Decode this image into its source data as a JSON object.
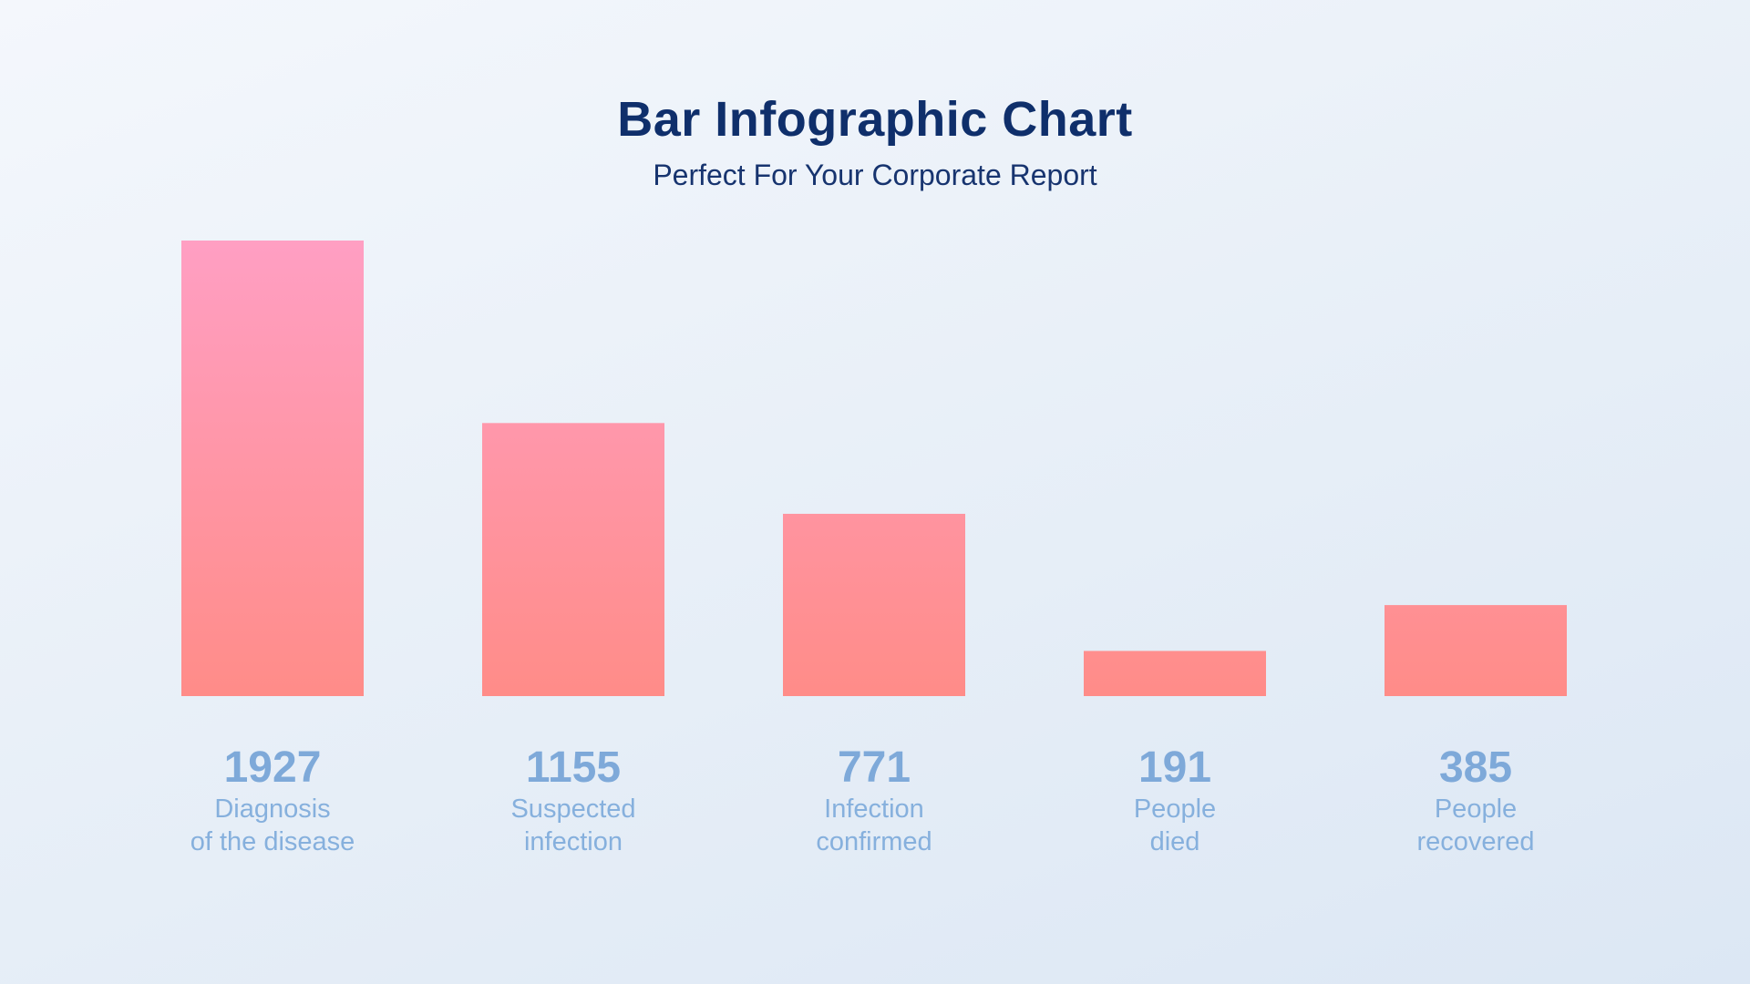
{
  "header": {
    "title": "Bar Infographic Chart",
    "subtitle": "Perfect For Your Corporate Report"
  },
  "colors": {
    "bar_top_tall": "#ff9fc3",
    "bar_bottom": "#ff8c88",
    "value_text": "#7ea9d9",
    "category_text": "#86b0dd",
    "title_text": "#0f2f6b"
  },
  "chart_data": {
    "type": "bar",
    "title": "Bar Infographic Chart",
    "subtitle": "Perfect For Your Corporate Report",
    "categories": [
      [
        "Diagnosis",
        "of the disease"
      ],
      [
        "Suspected",
        "infection"
      ],
      [
        "Infection",
        "confirmed"
      ],
      [
        "People",
        "died"
      ],
      [
        "People",
        "recovered"
      ]
    ],
    "values": [
      1927,
      1155,
      771,
      191,
      385
    ],
    "ylim": [
      0,
      1927
    ],
    "grid": false,
    "legend": "none"
  }
}
